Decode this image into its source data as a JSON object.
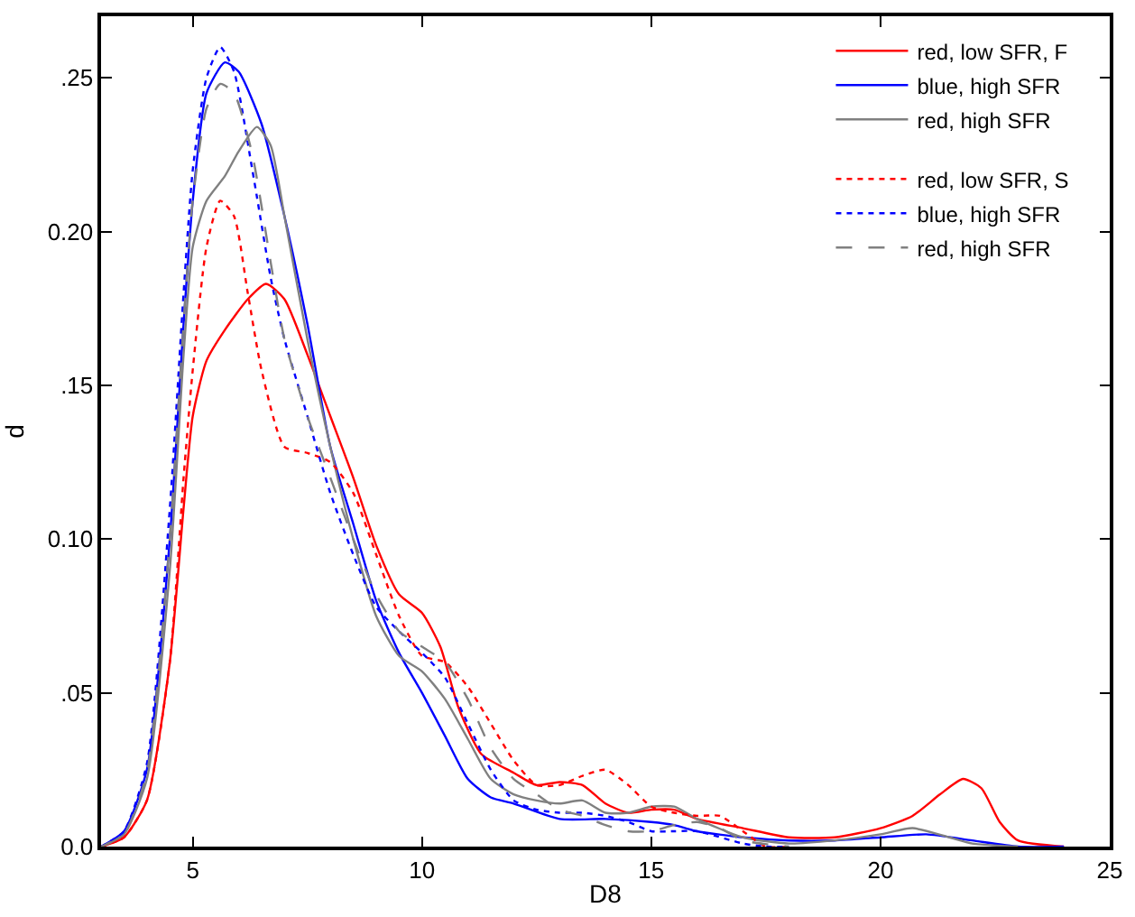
{
  "chart_data": {
    "type": "line",
    "xlabel": "D8",
    "ylabel": "d",
    "xlim": [
      3,
      25
    ],
    "xticks": [
      5,
      10,
      15,
      20,
      25
    ],
    "ylim": [
      0,
      0.27
    ],
    "yticks": [
      {
        "value": 0,
        "label": "0.0"
      },
      {
        "value": 0.05,
        "label": ".05"
      },
      {
        "value": 0.1,
        "label": "0.10"
      },
      {
        "value": 0.15,
        "label": ".15"
      },
      {
        "value": 0.2,
        "label": "0.20"
      },
      {
        "value": 0.25,
        "label": ".25"
      }
    ],
    "legend": "top right",
    "marker": "none",
    "series": [
      {
        "name": "red, low SFR, F",
        "color": "#ff0000",
        "line_style": "solid",
        "x": [
          3,
          3.5,
          4,
          4.5,
          4.8,
          5,
          5.3,
          5.7,
          6.2,
          6.6,
          7,
          7.5,
          8,
          8.5,
          9,
          9.5,
          10,
          10.4,
          10.8,
          11.3,
          12,
          12.5,
          13,
          13.5,
          14,
          14.5,
          15,
          15.5,
          16,
          17,
          18,
          19,
          20,
          20.7,
          21.3,
          21.8,
          22.2,
          22.6,
          23,
          24
        ],
        "values": [
          0,
          0.003,
          0.015,
          0.06,
          0.11,
          0.14,
          0.158,
          0.168,
          0.178,
          0.183,
          0.178,
          0.16,
          0.14,
          0.12,
          0.098,
          0.082,
          0.076,
          0.065,
          0.045,
          0.03,
          0.024,
          0.02,
          0.021,
          0.02,
          0.014,
          0.011,
          0.012,
          0.012,
          0.009,
          0.006,
          0.003,
          0.003,
          0.006,
          0.01,
          0.017,
          0.022,
          0.019,
          0.008,
          0.002,
          0
        ]
      },
      {
        "name": "blue, high SFR",
        "color": "#0000ff",
        "line_style": "solid",
        "x": [
          3,
          3.5,
          4,
          4.5,
          4.8,
          5,
          5.3,
          5.7,
          6,
          6.5,
          7,
          7.5,
          8,
          8.5,
          9,
          9.5,
          10,
          10.5,
          11,
          11.5,
          12,
          13,
          14,
          15,
          15.5,
          16,
          17,
          18,
          19,
          20,
          21,
          22,
          23,
          24
        ],
        "values": [
          0,
          0.005,
          0.025,
          0.1,
          0.17,
          0.21,
          0.245,
          0.255,
          0.252,
          0.235,
          0.205,
          0.17,
          0.13,
          0.105,
          0.08,
          0.063,
          0.05,
          0.036,
          0.022,
          0.016,
          0.014,
          0.009,
          0.009,
          0.008,
          0.007,
          0.005,
          0.003,
          0.002,
          0.002,
          0.003,
          0.004,
          0.002,
          0,
          0
        ]
      },
      {
        "name": "red, high SFR",
        "color": "#808080",
        "line_style": "solid",
        "x": [
          3,
          3.5,
          4,
          4.5,
          4.8,
          5,
          5.3,
          5.7,
          6,
          6.4,
          6.7,
          7,
          7.5,
          8,
          8.5,
          9,
          9.5,
          10,
          10.5,
          11,
          11.5,
          12,
          12.5,
          13,
          13.5,
          14,
          14.5,
          15,
          15.5,
          16,
          17,
          18,
          19,
          20,
          20.7,
          21.5,
          22,
          23
        ],
        "values": [
          0,
          0.004,
          0.022,
          0.09,
          0.16,
          0.195,
          0.21,
          0.218,
          0.226,
          0.234,
          0.228,
          0.205,
          0.165,
          0.13,
          0.1,
          0.075,
          0.062,
          0.057,
          0.048,
          0.035,
          0.022,
          0.017,
          0.015,
          0.014,
          0.015,
          0.011,
          0.011,
          0.013,
          0.013,
          0.009,
          0.003,
          0.001,
          0.002,
          0.004,
          0.006,
          0.003,
          0.001,
          0
        ]
      },
      {
        "name": "red, low SFR, S",
        "color": "#ff0000",
        "line_style": "dotted",
        "x": [
          3,
          3.5,
          4,
          4.5,
          4.8,
          5,
          5.3,
          5.6,
          5.9,
          6.2,
          6.5,
          7,
          7.5,
          8,
          8.5,
          9,
          9.5,
          10,
          10.5,
          11,
          11.5,
          12,
          12.5,
          13,
          13.5,
          14,
          14.5,
          15,
          15.5,
          16,
          16.5,
          17,
          17.5,
          18
        ],
        "values": [
          0,
          0.003,
          0.015,
          0.06,
          0.12,
          0.155,
          0.195,
          0.21,
          0.205,
          0.18,
          0.155,
          0.13,
          0.128,
          0.125,
          0.115,
          0.095,
          0.075,
          0.062,
          0.06,
          0.052,
          0.04,
          0.028,
          0.02,
          0.02,
          0.023,
          0.025,
          0.02,
          0.013,
          0.011,
          0.01,
          0.01,
          0.005,
          0,
          0
        ]
      },
      {
        "name": "blue, high SFR",
        "color": "#0000ff",
        "line_style": "dotted",
        "x": [
          3,
          3.5,
          4,
          4.5,
          4.8,
          5,
          5.3,
          5.6,
          5.9,
          6.3,
          6.7,
          7,
          7.5,
          8,
          8.5,
          9,
          9.5,
          10,
          10.5,
          11,
          11.5,
          12,
          12.5,
          13,
          13.5,
          14,
          14.5,
          15,
          15.5,
          16,
          17,
          17.5,
          18
        ],
        "values": [
          0,
          0.005,
          0.027,
          0.11,
          0.18,
          0.22,
          0.25,
          0.26,
          0.252,
          0.22,
          0.185,
          0.165,
          0.14,
          0.115,
          0.095,
          0.078,
          0.07,
          0.063,
          0.055,
          0.04,
          0.025,
          0.015,
          0.012,
          0.011,
          0.011,
          0.01,
          0.008,
          0.005,
          0.005,
          0.005,
          0.001,
          0,
          0
        ]
      },
      {
        "name": "red, high SFR",
        "color": "#808080",
        "line_style": "dashed",
        "x": [
          3,
          3.5,
          4,
          4.5,
          4.8,
          5,
          5.3,
          5.6,
          5.9,
          6.3,
          6.7,
          7,
          7.5,
          8,
          8.5,
          9,
          9.5,
          10,
          10.5,
          11,
          11.5,
          12,
          12.5,
          13,
          13.5,
          14,
          14.5,
          15,
          15.5,
          16,
          16.5,
          17,
          18
        ],
        "values": [
          0,
          0.004,
          0.024,
          0.1,
          0.17,
          0.21,
          0.24,
          0.248,
          0.245,
          0.225,
          0.19,
          0.165,
          0.14,
          0.12,
          0.1,
          0.082,
          0.07,
          0.065,
          0.06,
          0.048,
          0.032,
          0.022,
          0.017,
          0.012,
          0.01,
          0.007,
          0.005,
          0.005,
          0.007,
          0.008,
          0.006,
          0.002,
          0
        ]
      }
    ]
  }
}
